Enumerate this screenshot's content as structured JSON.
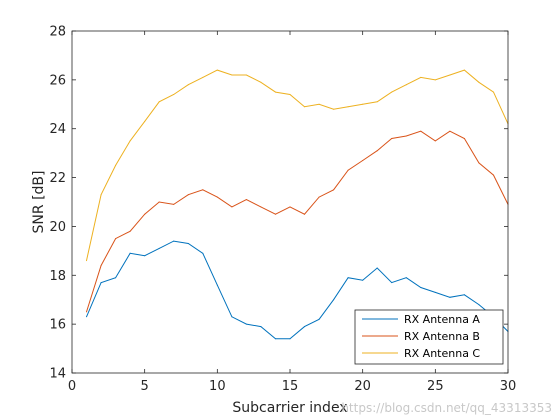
{
  "chart_data": {
    "type": "line",
    "xlabel": "Subcarrier index",
    "ylabel": "SNR [dB]",
    "xlim": [
      0,
      30
    ],
    "ylim": [
      14,
      28
    ],
    "xticks": [
      0,
      5,
      10,
      15,
      20,
      25,
      30
    ],
    "yticks": [
      14,
      16,
      18,
      20,
      22,
      24,
      26,
      28
    ],
    "grid": false,
    "legend_position": "bottom-right",
    "x": [
      1,
      2,
      3,
      4,
      5,
      6,
      7,
      8,
      9,
      10,
      11,
      12,
      13,
      14,
      15,
      16,
      17,
      18,
      19,
      20,
      21,
      22,
      23,
      24,
      25,
      26,
      27,
      28,
      29,
      30
    ],
    "series": [
      {
        "name": "RX Antenna A",
        "color": "#0072BD",
        "values": [
          16.3,
          17.7,
          17.9,
          18.9,
          18.8,
          19.1,
          19.4,
          19.3,
          18.9,
          17.6,
          16.3,
          16.0,
          15.9,
          15.4,
          15.4,
          15.9,
          16.2,
          17.0,
          17.9,
          17.8,
          18.3,
          17.7,
          17.9,
          17.5,
          17.3,
          17.1,
          17.2,
          16.8,
          16.3,
          15.7
        ]
      },
      {
        "name": "RX Antenna B",
        "color": "#D95319",
        "values": [
          16.5,
          18.4,
          19.5,
          19.8,
          20.5,
          21.0,
          20.9,
          21.3,
          21.5,
          21.2,
          20.8,
          21.1,
          20.8,
          20.5,
          20.8,
          20.5,
          21.2,
          21.5,
          22.3,
          22.7,
          23.1,
          23.6,
          23.7,
          23.9,
          23.5,
          23.9,
          23.6,
          22.6,
          22.1,
          20.9
        ]
      },
      {
        "name": "RX Antenna C",
        "color": "#EDB120",
        "values": [
          18.6,
          21.3,
          22.5,
          23.5,
          24.3,
          25.1,
          25.4,
          25.8,
          26.1,
          26.4,
          26.2,
          26.2,
          25.9,
          25.5,
          25.4,
          24.9,
          25.0,
          24.8,
          24.9,
          25.0,
          25.1,
          25.5,
          25.8,
          26.1,
          26.0,
          26.2,
          26.4,
          25.9,
          25.5,
          24.2
        ]
      }
    ]
  },
  "watermark": "https://blog.csdn.net/qq_43313353"
}
